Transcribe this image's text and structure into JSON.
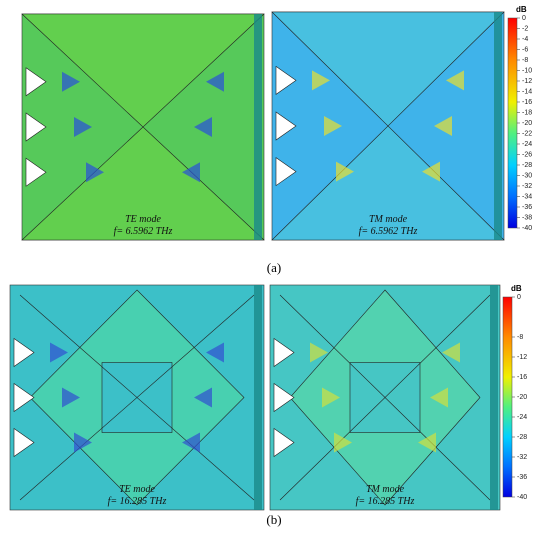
{
  "panels": [
    {
      "label": "(a)",
      "images": [
        {
          "mode": "TE mode",
          "frequency": "f= 6.5962 THz"
        },
        {
          "mode": "TM mode",
          "frequency": "f= 6.5962 THz"
        }
      ],
      "colorbar": {
        "unit": "dB",
        "ticks": [
          0,
          -2,
          -4,
          -6,
          -8,
          -10,
          -12,
          -14,
          -16,
          -18,
          -20,
          -22,
          -24,
          -26,
          -28,
          -30,
          -32,
          -34,
          -36,
          -38,
          -40
        ]
      }
    },
    {
      "label": "(b)",
      "images": [
        {
          "mode": "TE mode",
          "frequency": "f= 16.285 THz"
        },
        {
          "mode": "TM mode",
          "frequency": "f= 16.285 THz"
        }
      ],
      "colorbar": {
        "unit": "dB",
        "ticks": [
          0,
          -8,
          -12,
          -16,
          -20,
          -24,
          -28,
          -32,
          -36,
          -40
        ]
      }
    }
  ]
}
